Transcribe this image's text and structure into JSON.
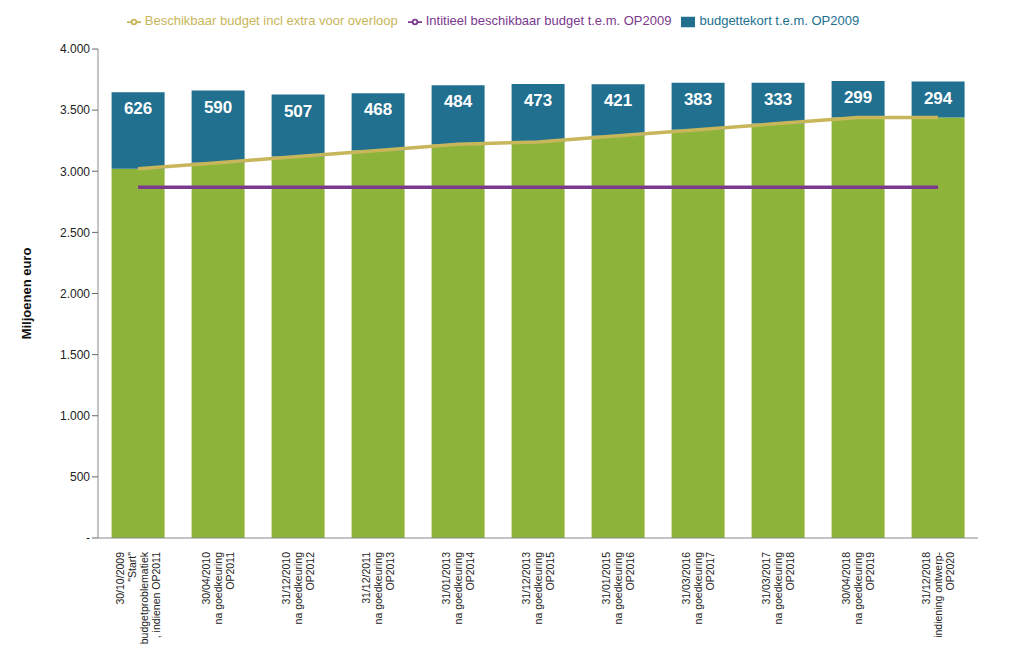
{
  "chart_data": {
    "type": "bar",
    "y_label": "Miljoenen euro",
    "categories": [
      "30/10/2009\n\"Start\"\nbudgetproblematiek\n, indienen OP2011",
      "30/04/2010\nna goedkeuring\nOP2011",
      "31/12/2010\nna goedkeuring\nOP2012",
      "31/12/2011\nna goedkeuring\nOP2013",
      "31/01/2013\nna goedkeuring\nOP2014",
      "31/12/2013\nna goedkeuring\nOP2015",
      "31/01/2015\nna goedkeuring\nOP2016",
      "31/03/2016\nna goedkeuring\nOP2017",
      "31/03/2017\nna goedkeuring\nOP2018",
      "30/04/2018\nna goedkeuring\nOP2019",
      "31/12/2018\nindiening ontwerp-\nOP2020"
    ],
    "series": [
      {
        "color": "#8db33a",
        "values": [
          3020,
          3070,
          3120,
          3170,
          3220,
          3240,
          3290,
          3340,
          3390,
          3440,
          3440
        ]
      },
      {
        "name": "budgettekort t.e.m. OP2009",
        "color": "#21708f",
        "values": [
          626,
          590,
          507,
          468,
          484,
          473,
          421,
          383,
          333,
          299,
          294
        ],
        "data_labels": true
      },
      {
        "name": "Intitieel beschikbaar budget t.e.m. OP2009",
        "type": "line",
        "color": "#7b3a8e",
        "values": [
          2870,
          2870,
          2870,
          2870,
          2870,
          2870,
          2870,
          2870,
          2870,
          2870,
          2870
        ]
      },
      {
        "name": "Beschikbaar budget incl extra voor overloop",
        "type": "line",
        "color": "#c8b65a",
        "values": [
          3020,
          3070,
          3120,
          3170,
          3220,
          3240,
          3290,
          3340,
          3390,
          3440,
          3440
        ]
      }
    ],
    "stacked": true,
    "ylim": [
      0,
      4000
    ],
    "yticks": [
      {
        "value": 0,
        "label": "-"
      },
      500,
      {
        "value": 1000,
        "label": "1.000"
      },
      {
        "value": 1500,
        "label": "1.500"
      },
      {
        "value": 2000,
        "label": "2.000"
      },
      {
        "value": 2500,
        "label": "2.500"
      },
      {
        "value": 3000,
        "label": "3.000"
      },
      {
        "value": 3500,
        "label": "3.500"
      },
      {
        "value": 4000,
        "label": "4.000"
      }
    ],
    "grid": false
  }
}
